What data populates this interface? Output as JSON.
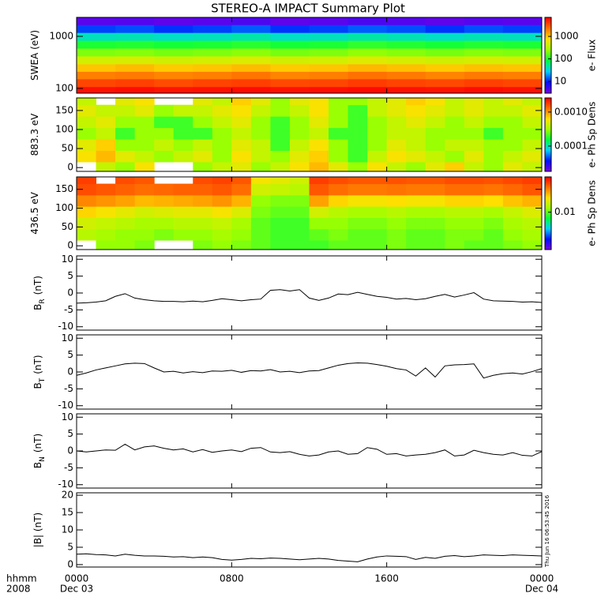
{
  "title": "STEREO-A IMPACT Summary Plot",
  "timestamp": "Thu Jun 16 06:53:45 2016",
  "x_axis": {
    "xlim": [
      0,
      24
    ],
    "xticks": [
      {
        "value": 0,
        "label": "0000"
      },
      {
        "value": 8,
        "label": "0800"
      },
      {
        "value": 16,
        "label": "1600"
      },
      {
        "value": 24,
        "label": "0000"
      }
    ],
    "dates": [
      {
        "value": 0,
        "label": "Dec 03"
      },
      {
        "value": 24,
        "label": "Dec 04"
      }
    ],
    "row_label": "hhmm",
    "year": "2008"
  },
  "chart_data": [
    {
      "type": "heatmap",
      "ylabel": "SWEA (eV)",
      "ylog": true,
      "ylim": [
        81,
        2310
      ],
      "yticks": [
        100,
        1000
      ],
      "x": [
        1,
        3,
        5,
        7,
        9,
        11,
        13,
        15,
        17,
        19,
        21,
        23
      ],
      "y": [
        90,
        130,
        180,
        250,
        350,
        500,
        700,
        1000,
        1400,
        2000
      ],
      "values": [
        [
          6000,
          6200,
          5800,
          6000,
          6300,
          5900,
          6100,
          6400,
          6000,
          5800,
          6200,
          6000
        ],
        [
          3500,
          3700,
          3300,
          3600,
          3800,
          3400,
          3500,
          3900,
          3600,
          3400,
          3700,
          3500
        ],
        [
          2000,
          2100,
          1900,
          2000,
          2200,
          1900,
          2000,
          2300,
          2100,
          1900,
          2100,
          2000
        ],
        [
          1000,
          1100,
          950,
          1000,
          1100,
          950,
          1000,
          1150,
          1050,
          950,
          1050,
          1000
        ],
        [
          450,
          480,
          430,
          460,
          500,
          440,
          450,
          520,
          470,
          430,
          470,
          450
        ],
        [
          200,
          210,
          190,
          200,
          220,
          190,
          200,
          230,
          210,
          190,
          210,
          200
        ],
        [
          100,
          105,
          95,
          100,
          110,
          95,
          100,
          115,
          105,
          95,
          105,
          100
        ],
        [
          40,
          42,
          38,
          40,
          45,
          38,
          40,
          46,
          42,
          38,
          42,
          40
        ],
        [
          12,
          13,
          11,
          12,
          14,
          11,
          12,
          14,
          13,
          11,
          13,
          12
        ],
        [
          4,
          4.2,
          3.8,
          4,
          4.5,
          3.8,
          4,
          4.6,
          4.2,
          3.8,
          4.2,
          4
        ]
      ],
      "clabel": "e- Flux",
      "clog": true,
      "clim": [
        3,
        7000
      ],
      "cticks": [
        10,
        100,
        1000
      ],
      "colormap": [
        "#7a00e6",
        "#0010ff",
        "#00d0ff",
        "#00ff40",
        "#a0ff00",
        "#ffe000",
        "#ff7000",
        "#ff0000"
      ]
    },
    {
      "type": "heatmap",
      "ylabel": "883.3 eV",
      "ylog": false,
      "ylim": [
        -10,
        183
      ],
      "yticks": [
        0,
        50,
        100,
        150
      ],
      "x": [
        0.5,
        1.5,
        2.5,
        3.5,
        4.5,
        5.5,
        6.5,
        7.5,
        8.5,
        9.5,
        10.5,
        11.5,
        12.5,
        13.5,
        14.5,
        15.5,
        16.5,
        17.5,
        18.5,
        19.5,
        20.5,
        21.5,
        22.5,
        23.5
      ],
      "y": [
        0,
        30,
        60,
        90,
        120,
        150,
        180
      ],
      "values": [
        [
          null,
          0.0004,
          0.0003,
          0.0006,
          null,
          null,
          0.0003,
          0.0004,
          0.0005,
          0.0003,
          0.0004,
          0.0006,
          0.0008,
          0.0005,
          0.0003,
          0.0006,
          0.0004,
          0.0003,
          0.0005,
          0.0007,
          0.0004,
          0.0003,
          0.0005,
          0.0004
        ],
        [
          0.0006,
          0.0008,
          0.0005,
          0.0004,
          0.0003,
          0.0004,
          0.0005,
          0.0003,
          0.0006,
          0.0004,
          0.0003,
          0.0005,
          0.0007,
          0.0003,
          0.0002,
          0.0004,
          0.0006,
          0.0005,
          0.0004,
          0.0003,
          0.0005,
          0.0003,
          0.0004,
          0.0005
        ],
        [
          0.0005,
          0.0007,
          0.0003,
          0.0003,
          0.0004,
          0.0003,
          0.0004,
          0.0003,
          0.0005,
          0.0004,
          0.0002,
          0.0004,
          0.0006,
          0.0003,
          0.0002,
          0.0003,
          0.0005,
          0.0004,
          0.0003,
          0.0004,
          0.0004,
          0.0003,
          0.0003,
          0.0004
        ],
        [
          0.0003,
          0.0004,
          0.0002,
          0.0003,
          0.0003,
          0.0002,
          0.0002,
          0.0003,
          0.0004,
          0.0003,
          0.0002,
          0.0003,
          0.0004,
          0.0002,
          0.0002,
          0.0003,
          0.0004,
          0.0004,
          0.0003,
          0.0003,
          0.0003,
          0.0002,
          0.0003,
          0.0003
        ],
        [
          0.0004,
          0.0005,
          0.0003,
          0.0003,
          0.0002,
          0.0002,
          0.0003,
          0.0004,
          0.0005,
          0.0003,
          0.0002,
          0.0003,
          0.0005,
          0.0003,
          0.0002,
          0.0003,
          0.0004,
          0.0005,
          0.0004,
          0.0003,
          0.0004,
          0.0003,
          0.0003,
          0.0004
        ],
        [
          0.0005,
          0.0004,
          0.0004,
          0.0005,
          0.0003,
          0.0004,
          0.0004,
          0.0005,
          0.0006,
          0.0004,
          0.0003,
          0.0004,
          0.0006,
          0.0003,
          0.0002,
          0.0004,
          0.0005,
          0.0006,
          0.0005,
          0.0004,
          0.0005,
          0.0004,
          0.0004,
          0.0005
        ],
        [
          0.0004,
          null,
          0.0005,
          0.0006,
          null,
          null,
          0.0005,
          0.0004,
          0.0007,
          0.0005,
          0.0003,
          0.0005,
          0.0006,
          0.0003,
          0.0003,
          0.0004,
          0.0005,
          0.0007,
          0.0006,
          0.0004,
          0.0005,
          0.0004,
          0.0005,
          0.0004
        ]
      ],
      "clabel": "e- Ph Sp Dens",
      "clog": true,
      "clim": [
        1.8e-05,
        0.0026
      ],
      "cticks": [
        0.0001,
        {
          "value": 0.001,
          "label": "0.0010"
        }
      ],
      "colormap": [
        "#7a00e6",
        "#0010ff",
        "#00d0ff",
        "#00ff40",
        "#a0ff00",
        "#ffe000",
        "#ff7000",
        "#ff0000"
      ]
    },
    {
      "type": "heatmap",
      "ylabel": "436.5 eV",
      "ylog": false,
      "ylim": [
        -10,
        183
      ],
      "yticks": [
        0,
        50,
        100,
        150
      ],
      "x": [
        0.5,
        1.5,
        2.5,
        3.5,
        4.5,
        5.5,
        6.5,
        7.5,
        8.5,
        9.5,
        10.5,
        11.5,
        12.5,
        13.5,
        14.5,
        15.5,
        16.5,
        17.5,
        18.5,
        19.5,
        20.5,
        21.5,
        22.5,
        23.5
      ],
      "y": [
        0,
        30,
        60,
        90,
        120,
        150,
        180
      ],
      "values": [
        [
          null,
          0.012,
          0.012,
          0.011,
          null,
          null,
          0.011,
          0.012,
          0.011,
          0.01,
          0.009,
          0.009,
          0.009,
          0.01,
          0.01,
          0.01,
          0.011,
          0.01,
          0.01,
          0.011,
          0.01,
          0.01,
          0.011,
          0.012
        ],
        [
          0.014,
          0.013,
          0.012,
          0.012,
          0.011,
          0.012,
          0.012,
          0.013,
          0.012,
          0.01,
          0.009,
          0.009,
          0.01,
          0.011,
          0.01,
          0.01,
          0.011,
          0.01,
          0.01,
          0.011,
          0.011,
          0.01,
          0.012,
          0.013
        ],
        [
          0.016,
          0.015,
          0.014,
          0.013,
          0.013,
          0.014,
          0.014,
          0.015,
          0.013,
          0.01,
          0.009,
          0.009,
          0.012,
          0.012,
          0.011,
          0.011,
          0.012,
          0.011,
          0.011,
          0.012,
          0.012,
          0.011,
          0.013,
          0.014
        ],
        [
          0.022,
          0.02,
          0.018,
          0.016,
          0.017,
          0.018,
          0.018,
          0.02,
          0.017,
          0.011,
          0.01,
          0.01,
          0.016,
          0.014,
          0.013,
          0.013,
          0.014,
          0.013,
          0.013,
          0.014,
          0.014,
          0.013,
          0.015,
          0.017
        ],
        [
          0.032,
          0.03,
          0.028,
          0.025,
          0.026,
          0.027,
          0.028,
          0.03,
          0.026,
          0.012,
          0.011,
          0.011,
          0.028,
          0.022,
          0.02,
          0.02,
          0.021,
          0.02,
          0.02,
          0.022,
          0.022,
          0.021,
          0.024,
          0.026
        ],
        [
          0.042,
          0.04,
          0.038,
          0.036,
          0.037,
          0.038,
          0.038,
          0.04,
          0.036,
          0.016,
          0.015,
          0.014,
          0.04,
          0.036,
          0.034,
          0.034,
          0.035,
          0.034,
          0.034,
          0.036,
          0.036,
          0.035,
          0.037,
          0.04
        ],
        [
          0.045,
          null,
          0.042,
          0.04,
          null,
          null,
          0.042,
          0.044,
          0.04,
          0.02,
          0.018,
          0.016,
          0.045,
          0.042,
          0.04,
          0.04,
          0.041,
          0.04,
          0.04,
          0.042,
          0.042,
          0.041,
          0.043,
          0.045
        ]
      ],
      "clabel": "e- Ph Sp Dens",
      "clog": true,
      "clim": [
        0.0015,
        0.06
      ],
      "cticks": [
        0.01
      ],
      "colormap": [
        "#7a00e6",
        "#0010ff",
        "#00d0ff",
        "#00ff40",
        "#a0ff00",
        "#ffe000",
        "#ff7000",
        "#ff0000"
      ]
    },
    {
      "type": "line",
      "ylabel": "B",
      "ylabel_sub": "R",
      "ylabel_unit": "(nT)",
      "ylim": [
        -11,
        11
      ],
      "yticks": [
        -10,
        -5,
        0,
        5,
        10
      ],
      "color": "#000000",
      "x": [
        0,
        0.5,
        1,
        1.5,
        2,
        2.5,
        3,
        3.5,
        4,
        4.5,
        5,
        5.5,
        6,
        6.5,
        7,
        7.5,
        8,
        8.5,
        9,
        9.5,
        10,
        10.5,
        11,
        11.5,
        12,
        12.5,
        13,
        13.5,
        14,
        14.5,
        15,
        15.5,
        16,
        16.5,
        17,
        17.5,
        18,
        18.5,
        19,
        19.5,
        20,
        20.5,
        21,
        21.5,
        22,
        22.5,
        23,
        23.5,
        24
      ],
      "values": [
        -3,
        -2.9,
        -2.7,
        -2.3,
        -1.0,
        -0.2,
        -1.5,
        -2.0,
        -2.3,
        -2.5,
        -2.5,
        -2.6,
        -2.4,
        -2.6,
        -2.2,
        -1.7,
        -2.0,
        -2.3,
        -2.0,
        -1.8,
        0.8,
        1.0,
        0.6,
        1.0,
        -1.5,
        -2.2,
        -1.5,
        -0.3,
        -0.5,
        0.2,
        -0.4,
        -1.0,
        -1.3,
        -1.8,
        -1.6,
        -2.0,
        -1.7,
        -1.0,
        -0.4,
        -1.2,
        -0.6,
        0.1,
        -1.8,
        -2.3,
        -2.4,
        -2.5,
        -2.7,
        -2.6,
        -2.8
      ]
    },
    {
      "type": "line",
      "ylabel": "B",
      "ylabel_sub": "T",
      "ylabel_unit": "(nT)",
      "ylim": [
        -11,
        11
      ],
      "yticks": [
        -10,
        -5,
        0,
        5,
        10
      ],
      "color": "#000000",
      "x": [
        0,
        0.5,
        1,
        1.5,
        2,
        2.5,
        3,
        3.5,
        4,
        4.5,
        5,
        5.5,
        6,
        6.5,
        7,
        7.5,
        8,
        8.5,
        9,
        9.5,
        10,
        10.5,
        11,
        11.5,
        12,
        12.5,
        13,
        13.5,
        14,
        14.5,
        15,
        15.5,
        16,
        16.5,
        17,
        17.5,
        18,
        18.5,
        19,
        19.5,
        20,
        20.5,
        21,
        21.5,
        22,
        22.5,
        23,
        23.5,
        24
      ],
      "values": [
        -1.0,
        -0.3,
        0.6,
        1.2,
        1.8,
        2.4,
        2.6,
        2.5,
        1.2,
        0.0,
        0.2,
        -0.3,
        0.1,
        -0.2,
        0.3,
        0.2,
        0.5,
        -0.1,
        0.4,
        0.3,
        0.7,
        0.0,
        0.2,
        -0.2,
        0.3,
        0.4,
        1.2,
        2.0,
        2.5,
        2.7,
        2.6,
        2.2,
        1.7,
        1.0,
        0.6,
        -1.2,
        1.2,
        -1.5,
        1.8,
        2.1,
        2.2,
        2.4,
        -1.8,
        -1.0,
        -0.5,
        -0.3,
        -0.6,
        0.1,
        1.0
      ]
    },
    {
      "type": "line",
      "ylabel": "B",
      "ylabel_sub": "N",
      "ylabel_unit": "(nT)",
      "ylim": [
        -11,
        11
      ],
      "yticks": [
        -10,
        -5,
        0,
        5,
        10
      ],
      "color": "#000000",
      "x": [
        0,
        0.5,
        1,
        1.5,
        2,
        2.5,
        3,
        3.5,
        4,
        4.5,
        5,
        5.5,
        6,
        6.5,
        7,
        7.5,
        8,
        8.5,
        9,
        9.5,
        10,
        10.5,
        11,
        11.5,
        12,
        12.5,
        13,
        13.5,
        14,
        14.5,
        15,
        15.5,
        16,
        16.5,
        17,
        17.5,
        18,
        18.5,
        19,
        19.5,
        20,
        20.5,
        21,
        21.5,
        22,
        22.5,
        23,
        23.5,
        24
      ],
      "values": [
        0.0,
        -0.3,
        0.0,
        0.3,
        0.2,
        2.0,
        0.3,
        1.2,
        1.5,
        0.8,
        0.3,
        0.6,
        -0.3,
        0.4,
        -0.4,
        0.0,
        0.3,
        -0.2,
        0.8,
        1.0,
        -0.3,
        -0.5,
        -0.2,
        -1.0,
        -1.5,
        -1.2,
        -0.3,
        0.0,
        -1.0,
        -0.8,
        1.0,
        0.5,
        -1.0,
        -0.8,
        -1.5,
        -1.2,
        -1.0,
        -0.5,
        0.3,
        -1.5,
        -1.2,
        0.2,
        -0.5,
        -1.0,
        -1.2,
        -0.5,
        -1.3,
        -1.5,
        -0.2
      ]
    },
    {
      "type": "line",
      "ylabel": "|B| (nT)",
      "ylim": [
        -0.7,
        20.7
      ],
      "yticks": [
        0,
        5,
        10,
        15,
        20
      ],
      "color": "#000000",
      "x": [
        0,
        0.5,
        1,
        1.5,
        2,
        2.5,
        3,
        3.5,
        4,
        4.5,
        5,
        5.5,
        6,
        6.5,
        7,
        7.5,
        8,
        8.5,
        9,
        9.5,
        10,
        10.5,
        11,
        11.5,
        12,
        12.5,
        13,
        13.5,
        14,
        14.5,
        15,
        15.5,
        16,
        16.5,
        17,
        17.5,
        18,
        18.5,
        19,
        19.5,
        20,
        20.5,
        21,
        21.5,
        22,
        22.5,
        23,
        23.5,
        24
      ],
      "values": [
        3.0,
        3.1,
        2.9,
        2.8,
        2.5,
        3.0,
        2.7,
        2.5,
        2.5,
        2.4,
        2.2,
        2.3,
        2.0,
        2.2,
        2.0,
        1.5,
        1.3,
        1.5,
        1.8,
        1.7,
        1.9,
        1.8,
        1.6,
        1.4,
        1.6,
        1.8,
        1.6,
        1.2,
        1.0,
        0.8,
        1.6,
        2.2,
        2.5,
        2.4,
        2.3,
        1.5,
        2.1,
        1.8,
        2.4,
        2.6,
        2.3,
        2.5,
        2.8,
        2.7,
        2.6,
        2.8,
        2.7,
        2.6,
        2.5
      ]
    }
  ]
}
